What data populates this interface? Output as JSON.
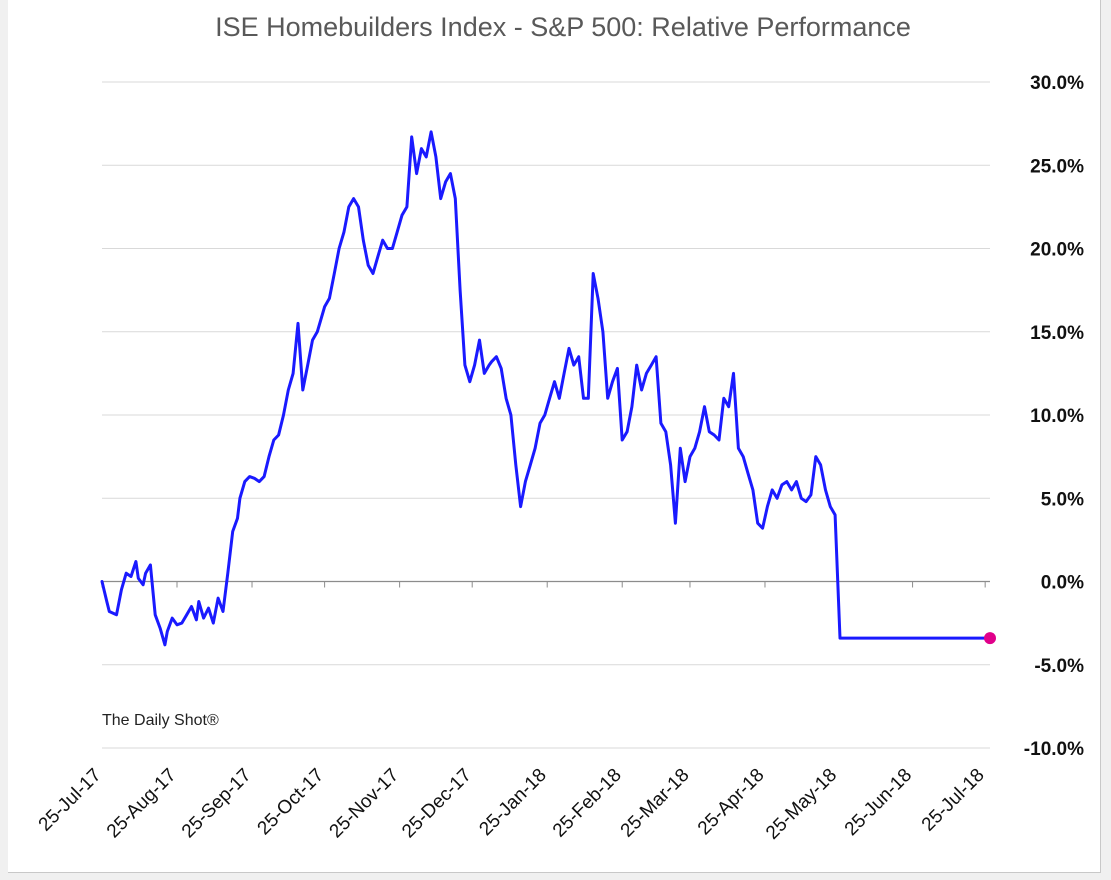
{
  "chart_data": {
    "type": "line",
    "title": "ISE Homebuilders Index - S&P 500:   Relative Performance",
    "watermark": "The Daily Shot®",
    "y_axis_position": "right",
    "grid": true,
    "ylim": [
      -10,
      30
    ],
    "ytick_values": [
      30,
      25,
      20,
      15,
      10,
      5,
      0,
      -5,
      -10
    ],
    "ytick_labels": [
      "30.0%",
      "25.0%",
      "20.0%",
      "15.0%",
      "10.0%",
      "5.0%",
      "0.0%",
      "-5.0%",
      "-10.0%"
    ],
    "xlim": [
      "2017-07-25",
      "2018-07-27"
    ],
    "xtick_values": [
      "2017-07-25",
      "2017-08-25",
      "2017-09-25",
      "2017-10-25",
      "2017-11-25",
      "2017-12-25",
      "2018-01-25",
      "2018-02-25",
      "2018-03-25",
      "2018-04-25",
      "2018-05-25",
      "2018-06-25",
      "2018-07-25"
    ],
    "xtick_labels": [
      "25-Jul-17",
      "25-Aug-17",
      "25-Sep-17",
      "25-Oct-17",
      "25-Nov-17",
      "25-Dec-17",
      "25-Jan-18",
      "25-Feb-18",
      "25-Mar-18",
      "25-Apr-18",
      "25-May-18",
      "25-Jun-18",
      "25-Jul-18"
    ],
    "line_color": "#1a1aff",
    "marker_color": "#e0008a",
    "series": [
      {
        "x": [
          "2017-07-25",
          "2017-07-27",
          "2017-07-28",
          "2017-07-31",
          "2017-08-02",
          "2017-08-04",
          "2017-08-06",
          "2017-08-08",
          "2017-08-09",
          "2017-08-11",
          "2017-08-12",
          "2017-08-14",
          "2017-08-16",
          "2017-08-18",
          "2017-08-20",
          "2017-08-21",
          "2017-08-23",
          "2017-08-25",
          "2017-08-27",
          "2017-08-29",
          "2017-08-31",
          "2017-09-02",
          "2017-09-03",
          "2017-09-05",
          "2017-09-07",
          "2017-09-09",
          "2017-09-11",
          "2017-09-13",
          "2017-09-15",
          "2017-09-17",
          "2017-09-19",
          "2017-09-20",
          "2017-09-22",
          "2017-09-24",
          "2017-09-26",
          "2017-09-28",
          "2017-09-30",
          "2017-10-02",
          "2017-10-04",
          "2017-10-06",
          "2017-10-08",
          "2017-10-10",
          "2017-10-12",
          "2017-10-14",
          "2017-10-16",
          "2017-10-18",
          "2017-10-20",
          "2017-10-22",
          "2017-10-25",
          "2017-10-27",
          "2017-10-29",
          "2017-10-31",
          "2017-11-02",
          "2017-11-04",
          "2017-11-06",
          "2017-11-08",
          "2017-11-10",
          "2017-11-12",
          "2017-11-14",
          "2017-11-16",
          "2017-11-18",
          "2017-11-20",
          "2017-11-22",
          "2017-11-24",
          "2017-11-26",
          "2017-11-28",
          "2017-11-30",
          "2017-12-02",
          "2017-12-04",
          "2017-12-06",
          "2017-12-08",
          "2017-12-10",
          "2017-12-12",
          "2017-12-14",
          "2017-12-16",
          "2017-12-18",
          "2017-12-20",
          "2017-12-22",
          "2017-12-24",
          "2017-12-26",
          "2017-12-28",
          "2017-12-30",
          "2018-01-01",
          "2018-01-02",
          "2018-01-04",
          "2018-01-06",
          "2018-01-08",
          "2018-01-10",
          "2018-01-12",
          "2018-01-14",
          "2018-01-16",
          "2018-01-18",
          "2018-01-20",
          "2018-01-22",
          "2018-01-24",
          "2018-01-26",
          "2018-01-28",
          "2018-01-30",
          "2018-02-01",
          "2018-02-03",
          "2018-02-05",
          "2018-02-07",
          "2018-02-09",
          "2018-02-11",
          "2018-02-13",
          "2018-02-15",
          "2018-02-17",
          "2018-02-19",
          "2018-02-21",
          "2018-02-23",
          "2018-02-25",
          "2018-02-27",
          "2018-03-01",
          "2018-03-03",
          "2018-03-05",
          "2018-03-07",
          "2018-03-09",
          "2018-03-11",
          "2018-03-13",
          "2018-03-15",
          "2018-03-17",
          "2018-03-19",
          "2018-03-21",
          "2018-03-23",
          "2018-03-25",
          "2018-03-27",
          "2018-03-29",
          "2018-03-31",
          "2018-04-02",
          "2018-04-04",
          "2018-04-06",
          "2018-04-08",
          "2018-04-10",
          "2018-04-12",
          "2018-04-14",
          "2018-04-16",
          "2018-04-18",
          "2018-04-20",
          "2018-04-22",
          "2018-04-24",
          "2018-04-26",
          "2018-04-28",
          "2018-04-30",
          "2018-05-02",
          "2018-05-04",
          "2018-05-06",
          "2018-05-08",
          "2018-05-10",
          "2018-05-12",
          "2018-05-14",
          "2018-05-16",
          "2018-05-18",
          "2018-05-20",
          "2018-05-22",
          "2018-05-24",
          "2018-05-26",
          "2018-05-28",
          "2018-05-30",
          "2018-06-01",
          "2018-06-03",
          "2018-06-05",
          "2018-06-07",
          "2018-06-09",
          "2018-06-11",
          "2018-06-13",
          "2018-06-15",
          "2018-06-17",
          "2018-06-19",
          "2018-06-21",
          "2018-06-23",
          "2018-06-25",
          "2018-06-27",
          "2018-06-29",
          "2018-07-01",
          "2018-07-03",
          "2018-07-05",
          "2018-07-07",
          "2018-07-09",
          "2018-07-11",
          "2018-07-13",
          "2018-07-15",
          "2018-07-17",
          "2018-07-19",
          "2018-07-21",
          "2018-07-23",
          "2018-07-25",
          "2018-07-27"
        ],
        "y": [
          0.0,
          -1.2,
          -1.8,
          -2.0,
          -0.5,
          0.5,
          0.3,
          1.2,
          0.2,
          -0.2,
          0.5,
          1.0,
          -2.0,
          -2.8,
          -3.8,
          -3.0,
          -2.2,
          -2.6,
          -2.5,
          -2.0,
          -1.5,
          -2.3,
          -1.2,
          -2.2,
          -1.6,
          -2.5,
          -1.0,
          -1.8,
          0.5,
          3.0,
          3.8,
          5.0,
          6.0,
          6.3,
          6.2,
          6.0,
          6.3,
          7.5,
          8.5,
          8.8,
          10.0,
          11.5,
          12.5,
          15.5,
          11.5,
          13.0,
          14.5,
          15.0,
          16.5,
          17.0,
          18.5,
          20.0,
          21.0,
          22.5,
          23.0,
          22.5,
          20.5,
          19.0,
          18.5,
          19.5,
          20.5,
          20.0,
          20.0,
          21.0,
          22.0,
          22.5,
          26.7,
          24.5,
          26.0,
          25.5,
          27.0,
          25.5,
          23.0,
          24.0,
          24.5,
          23.0,
          17.5,
          13.0,
          12.0,
          13.0,
          14.5,
          12.5,
          13.0,
          13.2,
          13.5,
          12.8,
          11.0,
          10.0,
          7.0,
          4.5,
          6.0,
          7.0,
          8.0,
          9.5,
          10.0,
          11.0,
          12.0,
          11.0,
          12.5,
          14.0,
          13.0,
          13.5,
          11.0,
          11.0,
          18.5,
          17.0,
          15.0,
          11.0,
          12.0,
          12.8,
          8.5,
          9.0,
          10.5,
          13.0,
          11.5,
          12.5,
          13.0,
          13.5,
          9.5,
          9.0,
          7.0,
          3.5,
          8.0,
          6.0,
          7.5,
          8.0,
          9.0,
          10.5,
          9.0,
          8.8,
          8.5,
          11.0,
          10.5,
          12.5,
          8.0,
          7.5,
          6.5,
          5.5,
          3.5,
          3.2,
          4.5,
          5.5,
          5.0,
          5.8,
          6.0,
          5.5,
          6.0,
          5.0,
          4.8,
          5.2,
          7.5,
          7.0,
          5.5,
          4.5,
          4.0,
          -3.4,
          -3.4,
          -3.4,
          -3.4,
          -3.4,
          -3.4,
          -3.4,
          -3.4,
          -3.4,
          -3.4,
          -3.4,
          -3.4,
          -3.4,
          -3.4,
          -3.4,
          -3.4,
          -3.4,
          -3.4,
          -3.4,
          -3.4,
          -3.4,
          -3.4,
          -3.4,
          -3.4,
          -3.4,
          -3.4,
          -3.4,
          -3.4,
          -3.4,
          -3.4,
          -3.4,
          -3.4
        ]
      }
    ]
  }
}
